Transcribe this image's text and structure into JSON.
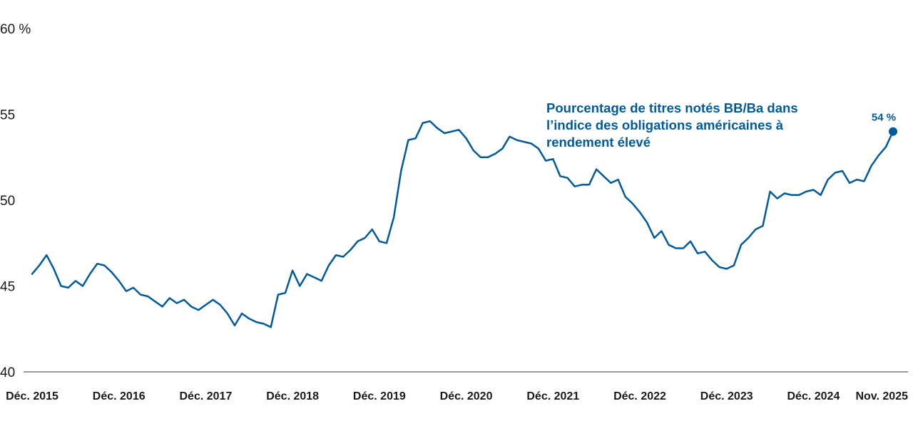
{
  "chart_data": {
    "type": "line",
    "annotation": "Pourcentage de titres notés BB/Ba dans l’indice des obligations américaines à rendement élevé",
    "end_label": "54 %",
    "ylim": [
      40,
      60
    ],
    "y_ticks": [
      {
        "value": 60,
        "label": "60 %"
      },
      {
        "value": 55,
        "label": "55"
      },
      {
        "value": 50,
        "label": "50"
      },
      {
        "value": 45,
        "label": "45"
      },
      {
        "value": 40,
        "label": "40"
      }
    ],
    "x_ticks": [
      {
        "value": "2015-12",
        "label": "Déc. 2015"
      },
      {
        "value": "2016-12",
        "label": "Déc. 2016"
      },
      {
        "value": "2017-12",
        "label": "Déc. 2017"
      },
      {
        "value": "2018-12",
        "label": "Déc. 2018"
      },
      {
        "value": "2019-12",
        "label": "Déc. 2019"
      },
      {
        "value": "2020-12",
        "label": "Déc. 2020"
      },
      {
        "value": "2021-12",
        "label": "Déc. 2021"
      },
      {
        "value": "2022-12",
        "label": "Déc. 2022"
      },
      {
        "value": "2023-12",
        "label": "Déc. 2023"
      },
      {
        "value": "2024-12",
        "label": "Déc. 2024"
      },
      {
        "value": "2025-11",
        "label": "Nov. 2025"
      }
    ],
    "line_color": "#005a9c",
    "series": [
      {
        "x": [
          "2015-12",
          "2016-01",
          "2016-02",
          "2016-03",
          "2016-04",
          "2016-05",
          "2016-06",
          "2016-07",
          "2016-08",
          "2016-09",
          "2016-10",
          "2016-11",
          "2016-12",
          "2017-01",
          "2017-02",
          "2017-03",
          "2017-04",
          "2017-05",
          "2017-06",
          "2017-07",
          "2017-08",
          "2017-09",
          "2017-10",
          "2017-11",
          "2017-12",
          "2018-01",
          "2018-02",
          "2018-03",
          "2018-04",
          "2018-05",
          "2018-06",
          "2018-07",
          "2018-08",
          "2018-09",
          "2018-10",
          "2018-11",
          "2018-12",
          "2019-01",
          "2019-02",
          "2019-03",
          "2019-04",
          "2019-05",
          "2019-06",
          "2019-07",
          "2019-08",
          "2019-09",
          "2019-10",
          "2019-11",
          "2019-12",
          "2020-01",
          "2020-02",
          "2020-03",
          "2020-04",
          "2020-05",
          "2020-06",
          "2020-07",
          "2020-08",
          "2020-09",
          "2020-10",
          "2020-11",
          "2020-12",
          "2021-01",
          "2021-02",
          "2021-03",
          "2021-04",
          "2021-05",
          "2021-06",
          "2021-07",
          "2021-08",
          "2021-09",
          "2021-10",
          "2021-11",
          "2021-12",
          "2022-01",
          "2022-02",
          "2022-03",
          "2022-04",
          "2022-05",
          "2022-06",
          "2022-07",
          "2022-08",
          "2022-09",
          "2022-10",
          "2022-11",
          "2022-12",
          "2023-01",
          "2023-02",
          "2023-03",
          "2023-04",
          "2023-05",
          "2023-06",
          "2023-07",
          "2023-08",
          "2023-09",
          "2023-10",
          "2023-11",
          "2023-12",
          "2024-01",
          "2024-02",
          "2024-03",
          "2024-04",
          "2024-05",
          "2024-06",
          "2024-07",
          "2024-08",
          "2024-09",
          "2024-10",
          "2024-11",
          "2024-12",
          "2025-01",
          "2025-02",
          "2025-03",
          "2025-04",
          "2025-05",
          "2025-06",
          "2025-07",
          "2025-08",
          "2025-09",
          "2025-10",
          "2025-11"
        ],
        "values": [
          45.7,
          46.2,
          46.8,
          46.0,
          45.0,
          44.9,
          45.3,
          45.0,
          45.7,
          46.3,
          46.2,
          45.8,
          45.3,
          44.7,
          44.9,
          44.5,
          44.4,
          44.1,
          43.8,
          44.3,
          44.0,
          44.2,
          43.8,
          43.6,
          43.9,
          44.2,
          43.9,
          43.4,
          42.7,
          43.4,
          43.1,
          42.9,
          42.8,
          42.6,
          44.5,
          44.6,
          45.9,
          45.0,
          45.7,
          45.5,
          45.3,
          46.2,
          46.8,
          46.7,
          47.1,
          47.6,
          47.8,
          48.3,
          47.6,
          47.5,
          49.0,
          51.7,
          53.5,
          53.6,
          54.5,
          54.6,
          54.2,
          53.9,
          54.0,
          54.1,
          53.6,
          52.9,
          52.5,
          52.5,
          52.7,
          53.0,
          53.7,
          53.5,
          53.4,
          53.3,
          53.0,
          52.3,
          52.4,
          51.4,
          51.3,
          50.8,
          50.9,
          50.9,
          51.8,
          51.4,
          51.0,
          51.2,
          50.2,
          49.8,
          49.3,
          48.7,
          47.8,
          48.2,
          47.4,
          47.2,
          47.2,
          47.6,
          46.9,
          47.0,
          46.5,
          46.1,
          46.0,
          46.2,
          47.4,
          47.8,
          48.3,
          48.5,
          50.5,
          50.1,
          50.4,
          50.3,
          50.3,
          50.5,
          50.6,
          50.3,
          51.2,
          51.6,
          51.7,
          51.0,
          51.2,
          51.1,
          52.0,
          52.6,
          53.1,
          54.0
        ]
      }
    ]
  }
}
